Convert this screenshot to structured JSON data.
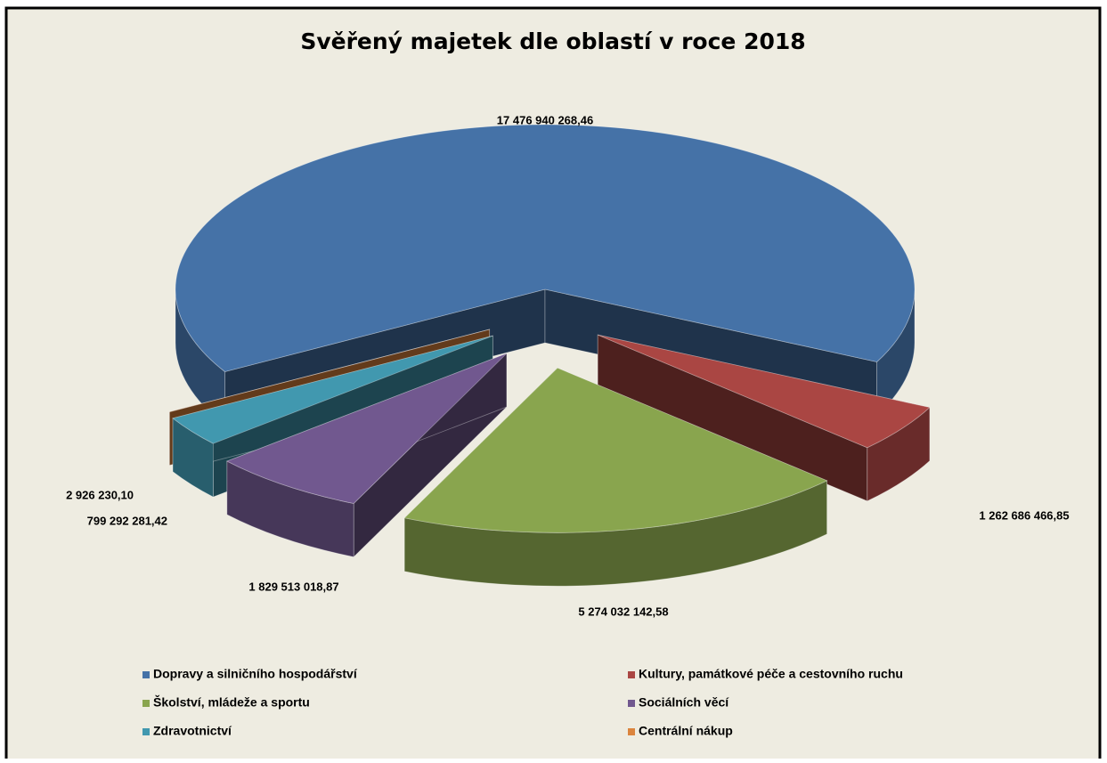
{
  "chart_data": {
    "type": "pie3d",
    "title": "Svěřený majetek dle oblastí v roce 2018",
    "categories": [
      "Dopravy a silničního hospodářství",
      "Kultury, památkové péče a cestovního ruchu",
      "Školství, mládeže a sportu",
      "Sociálních věcí",
      "Zdravotnictví",
      "Centrální nákup"
    ],
    "values": [
      17476940268.46,
      1262686466.85,
      5274032142.58,
      1829513018.87,
      799292281.42,
      2926230.1
    ],
    "value_labels": [
      "17 476 940 268,46",
      "1 262 686 466,85",
      "5 274 032 142,58",
      "1 829 513 018,87",
      "799 292 281,42",
      "2 926 230,10"
    ],
    "colors": [
      "#4572a7",
      "#aa4643",
      "#89a54e",
      "#71588f",
      "#4198af",
      "#db843d"
    ],
    "legend": "bottom"
  }
}
